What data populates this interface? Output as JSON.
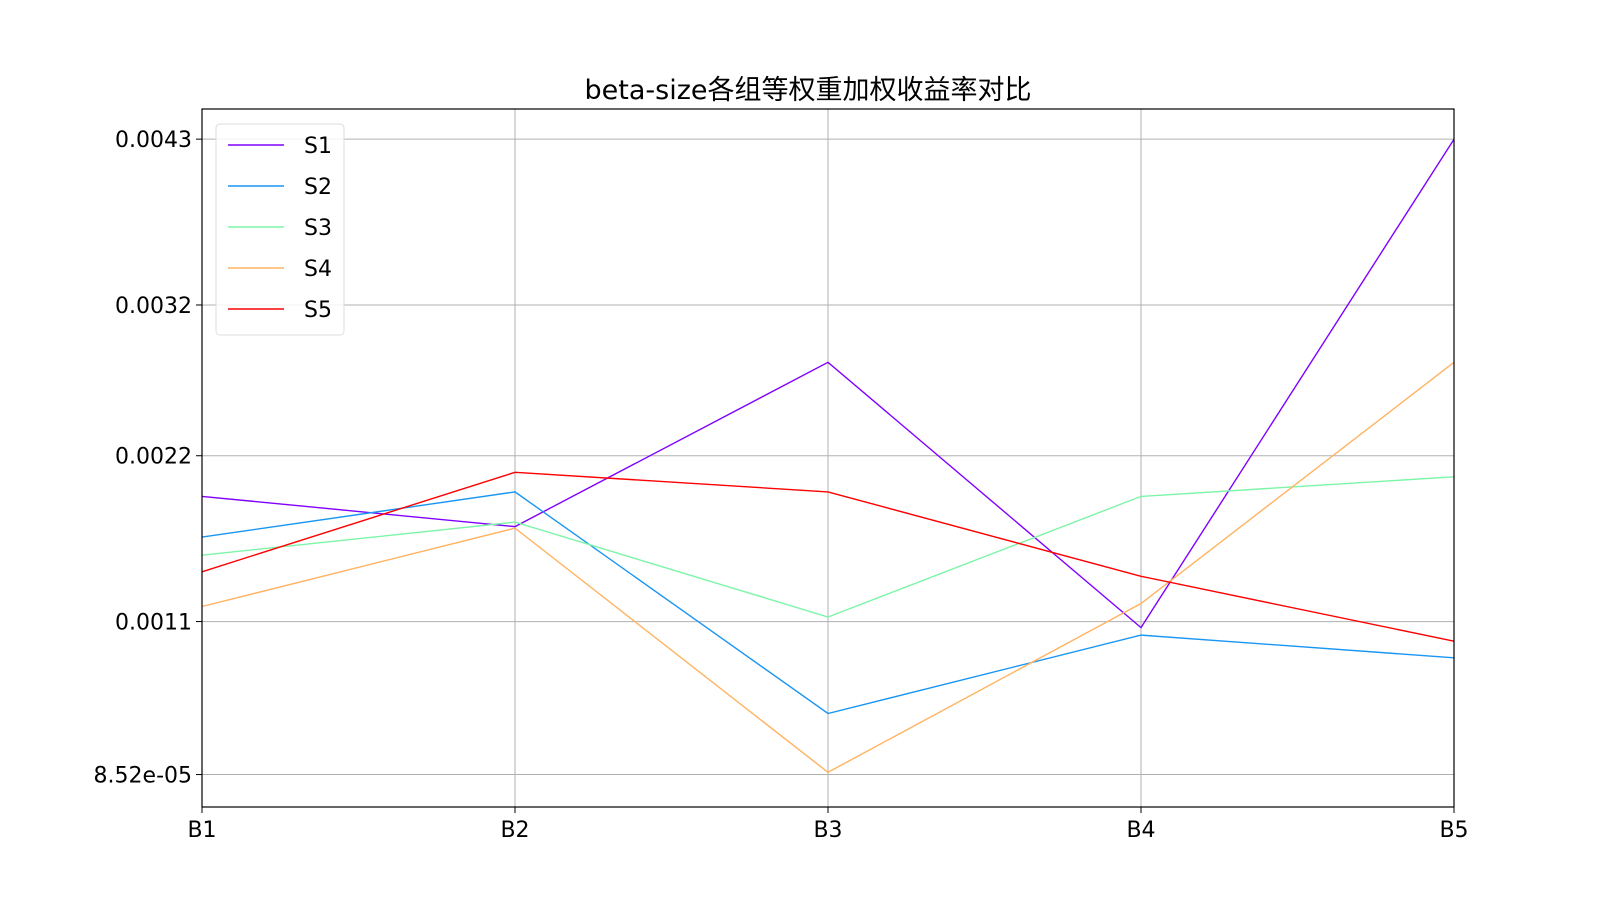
{
  "chart_data": {
    "type": "line",
    "title": "beta-size各组等权重加权收益率对比",
    "xlabel": "",
    "ylabel": "",
    "categories": [
      "B1",
      "B2",
      "B3",
      "B4",
      "B5"
    ],
    "yticks": [
      8.52e-05,
      0.0011,
      0.0022,
      0.0032,
      0.0043
    ],
    "ytick_labels": [
      "8.52e-05",
      "0.0011",
      "0.0022",
      "0.0032",
      "0.0043"
    ],
    "ylim": [
      -0.00013,
      0.0045
    ],
    "grid": true,
    "legend_position": "upper-left",
    "series": [
      {
        "name": "S1",
        "color": "#8000ff",
        "values": [
          0.00193,
          0.00173,
          0.00282,
          0.00106,
          0.0043
        ]
      },
      {
        "name": "S2",
        "color": "#1996f3",
        "values": [
          0.00166,
          0.00196,
          0.00049,
          0.00101,
          0.00086
        ]
      },
      {
        "name": "S3",
        "color": "#7df5a8",
        "values": [
          0.00154,
          0.00176,
          0.00113,
          0.00193,
          0.00206
        ]
      },
      {
        "name": "S4",
        "color": "#ffb360",
        "values": [
          0.0012,
          0.00172,
          0.0001,
          0.00122,
          0.00282
        ]
      },
      {
        "name": "S5",
        "color": "#ff0000",
        "values": [
          0.00143,
          0.00209,
          0.00196,
          0.0014,
          0.00097
        ]
      }
    ]
  }
}
